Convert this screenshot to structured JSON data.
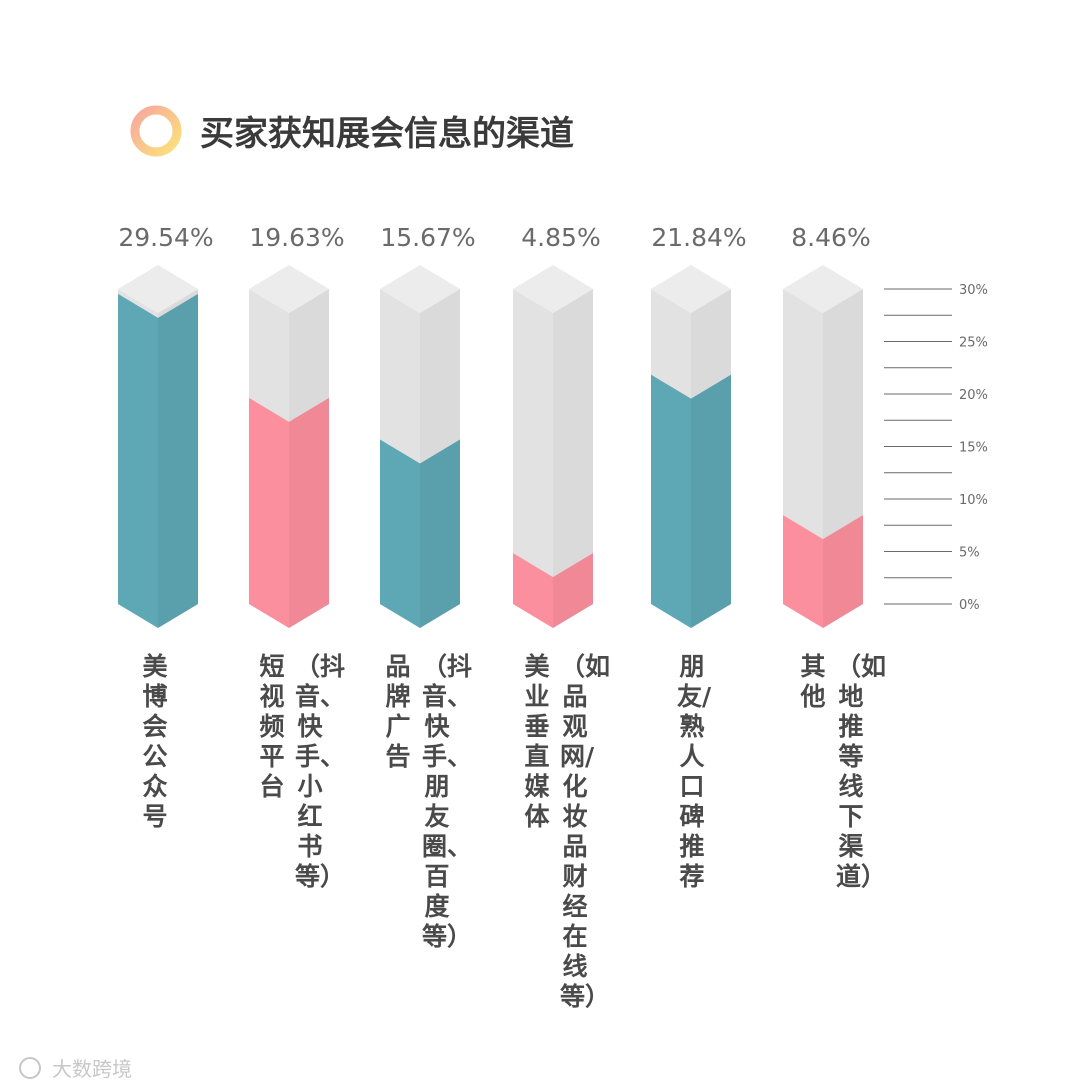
{
  "title": "买家获知展会信息的渠道",
  "watermark": "大数跨境",
  "colors": {
    "teal": "#5ea7b4",
    "pink": "#fb8f9d",
    "empty": "#e2e2e2",
    "axis": "#6a6a6a",
    "text": "#6a6a6a",
    "title": "#3a3a3a",
    "ring_a": "#f8b8a0",
    "ring_b": "#fbe17c"
  },
  "chart_data": {
    "type": "bar",
    "title": "买家获知展会信息的渠道",
    "ylim": [
      0,
      30
    ],
    "yticks": [
      "30%",
      "25%",
      "20%",
      "15%",
      "10%",
      "5%",
      "0%"
    ],
    "legend": "none",
    "grid": false,
    "categories": [
      {
        "line1": "美博会公众号",
        "line2": ""
      },
      {
        "line1": "短视频平台",
        "line2": "（抖音、快手、小红书等）"
      },
      {
        "line1": "品牌广告",
        "line2": "（抖音、快手、朋友圈、百度等）"
      },
      {
        "line1": "美业垂直媒体",
        "line2": "（如品观网/化妆品财经在线等）"
      },
      {
        "line1": "朋友/熟人口碑推荐",
        "line2": ""
      },
      {
        "line1": "其他",
        "line2": "（如地推等线下渠道）"
      }
    ],
    "values": [
      29.54,
      19.63,
      15.67,
      4.85,
      21.84,
      8.46
    ],
    "value_labels": [
      "29.54%",
      "19.63%",
      "15.67%",
      "4.85%",
      "21.84%",
      "8.46%"
    ],
    "bar_colors": [
      "teal",
      "pink",
      "teal",
      "pink",
      "teal",
      "pink"
    ]
  }
}
